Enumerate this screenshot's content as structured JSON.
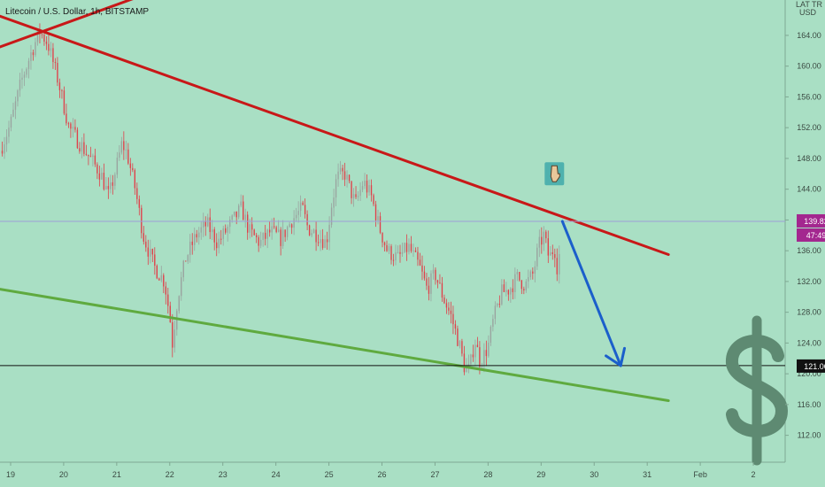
{
  "header": {
    "title": "Litecoin / U.S. Dollar, 1h, BITSTAMP",
    "axis_mode": "LAT TR",
    "currency": "USD"
  },
  "colors": {
    "background": "#a9dfc4",
    "candle_up": "#9aa39f",
    "candle_down": "#e0404a",
    "resistance": "#c81818",
    "support": "#5faa3f",
    "arrow": "#1b5fcb",
    "current_price_line": "#9f9fd8",
    "current_price_badge": "#a3278f",
    "horizontal_level": "#111111",
    "dollar_sign": "#5e8a72",
    "marker_box": "#4fb1ae"
  },
  "icons": {
    "marker": "pointing-down-hand-icon",
    "watermark": "dollar-sign-icon"
  },
  "price_badges": {
    "current_price": "139.82",
    "countdown": "47:49",
    "level": "121.06"
  },
  "chart_data": {
    "type": "candlestick",
    "x_axis": {
      "ticks": [
        {
          "day": 19,
          "label": "19"
        },
        {
          "day": 20,
          "label": "20"
        },
        {
          "day": 21,
          "label": "21"
        },
        {
          "day": 22,
          "label": "22"
        },
        {
          "day": 23,
          "label": "23"
        },
        {
          "day": 24,
          "label": "24"
        },
        {
          "day": 25,
          "label": "25"
        },
        {
          "day": 26,
          "label": "26"
        },
        {
          "day": 27,
          "label": "27"
        },
        {
          "day": 28,
          "label": "28"
        },
        {
          "day": 29,
          "label": "29"
        },
        {
          "day": 30,
          "label": "30"
        },
        {
          "day": 31,
          "label": "31"
        },
        {
          "day": 32,
          "label": "Feb"
        },
        {
          "day": 33,
          "label": "2"
        }
      ],
      "range": [
        18.8,
        33.6
      ]
    },
    "y_axis": {
      "ticks": [
        112,
        116,
        120,
        124,
        128,
        132,
        136,
        140,
        144,
        148,
        152,
        156,
        160,
        164
      ],
      "tick_labels": [
        "112.00",
        "116.00",
        "120.00",
        "124.00",
        "128.00",
        "132.00",
        "136.00",
        "140.00",
        "144.00",
        "148.00",
        "152.00",
        "156.00",
        "160.00",
        "164.00"
      ],
      "range": [
        108.5,
        168.6
      ]
    },
    "current_price": 139.82,
    "horizontal_level": 121.06,
    "price_path": [
      [
        18.8,
        149.0
      ],
      [
        19.0,
        152.5
      ],
      [
        19.2,
        158.0
      ],
      [
        19.4,
        162.0
      ],
      [
        19.55,
        164.5
      ],
      [
        19.7,
        163.0
      ],
      [
        19.9,
        158.0
      ],
      [
        20.1,
        152.0
      ],
      [
        20.3,
        150.0
      ],
      [
        20.5,
        148.0
      ],
      [
        20.7,
        146.0
      ],
      [
        20.85,
        143.0
      ],
      [
        21.0,
        147.0
      ],
      [
        21.1,
        150.0
      ],
      [
        21.2,
        148.5
      ],
      [
        21.35,
        144.0
      ],
      [
        21.5,
        138.0
      ],
      [
        21.7,
        134.0
      ],
      [
        21.9,
        132.0
      ],
      [
        22.0,
        127.5
      ],
      [
        22.05,
        124.0
      ],
      [
        22.15,
        130.0
      ],
      [
        22.3,
        135.0
      ],
      [
        22.5,
        138.0
      ],
      [
        22.7,
        139.5
      ],
      [
        22.9,
        137.0
      ],
      [
        23.1,
        139.0
      ],
      [
        23.35,
        141.5
      ],
      [
        23.5,
        138.5
      ],
      [
        23.7,
        137.0
      ],
      [
        23.9,
        138.5
      ],
      [
        24.1,
        137.5
      ],
      [
        24.3,
        140.0
      ],
      [
        24.5,
        141.5
      ],
      [
        24.6,
        139.0
      ],
      [
        24.8,
        138.0
      ],
      [
        24.95,
        137.0
      ],
      [
        25.05,
        142.0
      ],
      [
        25.15,
        145.5
      ],
      [
        25.3,
        146.0
      ],
      [
        25.5,
        142.0
      ],
      [
        25.65,
        145.0
      ],
      [
        25.8,
        143.0
      ],
      [
        25.95,
        139.0
      ],
      [
        26.1,
        136.0
      ],
      [
        26.3,
        135.0
      ],
      [
        26.5,
        136.5
      ],
      [
        26.7,
        134.0
      ],
      [
        26.85,
        131.0
      ],
      [
        27.0,
        133.0
      ],
      [
        27.15,
        130.0
      ],
      [
        27.3,
        127.5
      ],
      [
        27.45,
        124.0
      ],
      [
        27.55,
        121.0
      ],
      [
        27.65,
        120.5
      ],
      [
        27.75,
        124.5
      ],
      [
        27.85,
        121.5
      ],
      [
        28.0,
        123.5
      ],
      [
        28.1,
        127.0
      ],
      [
        28.25,
        130.5
      ],
      [
        28.4,
        131.0
      ],
      [
        28.55,
        132.5
      ],
      [
        28.7,
        131.5
      ],
      [
        28.85,
        133.0
      ],
      [
        28.95,
        136.5
      ],
      [
        29.05,
        138.0
      ],
      [
        29.15,
        135.0
      ],
      [
        29.25,
        136.5
      ],
      [
        29.32,
        133.0
      ],
      [
        29.38,
        139.8
      ]
    ],
    "resistance_lines": [
      {
        "points": [
          [
            18.8,
            166.5
          ],
          [
            31.4,
            135.5
          ]
        ]
      },
      {
        "points": [
          [
            18.8,
            162.5
          ],
          [
            23.4,
            174.0
          ]
        ]
      }
    ],
    "support_line": {
      "points": [
        [
          18.8,
          131.0
        ],
        [
          31.4,
          116.5
        ]
      ]
    },
    "projection_arrow": {
      "from": [
        29.4,
        139.82
      ],
      "to": [
        30.5,
        121.06
      ]
    },
    "marker_position": [
      29.25,
      146.0
    ]
  }
}
